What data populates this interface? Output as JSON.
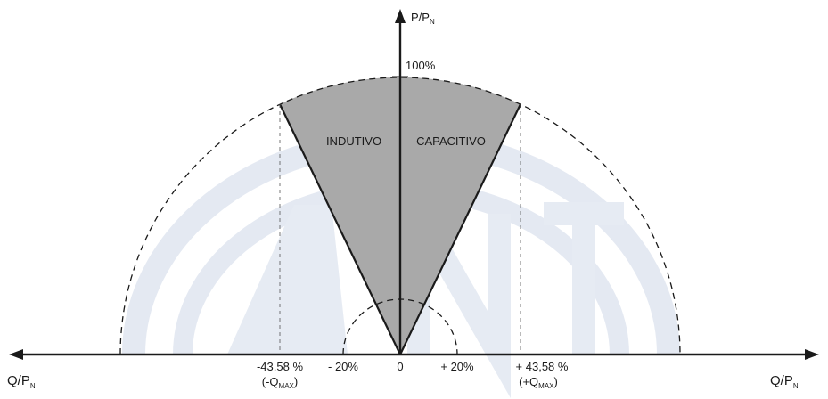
{
  "diagram": {
    "y_axis_label": "P/P",
    "y_axis_sub": "N",
    "x_axis_left_label": "Q/P",
    "x_axis_left_sub": "N",
    "x_axis_right_label": "Q/P",
    "x_axis_right_sub": "N",
    "max_label": "100%",
    "sector_left_label": "INDUTIVO",
    "sector_right_label": "CAPACITIVO",
    "ticks": {
      "neg_qmax": "-43,58 %",
      "neg_qmax_note_prefix": "(-Q",
      "neg_qmax_note_sub": "MAX",
      "neg_qmax_note_suffix": ")",
      "neg_20": "- 20%",
      "zero": "0",
      "pos_20": "+ 20%",
      "pos_qmax": "+ 43,58 %",
      "pos_qmax_note_prefix": "(+Q",
      "pos_qmax_note_sub": "MAX",
      "pos_qmax_note_suffix": ")"
    },
    "colors": {
      "sector_fill": "#a9a9a9",
      "line": "#1a1a1a",
      "watermark": "#e4e9f2"
    }
  }
}
